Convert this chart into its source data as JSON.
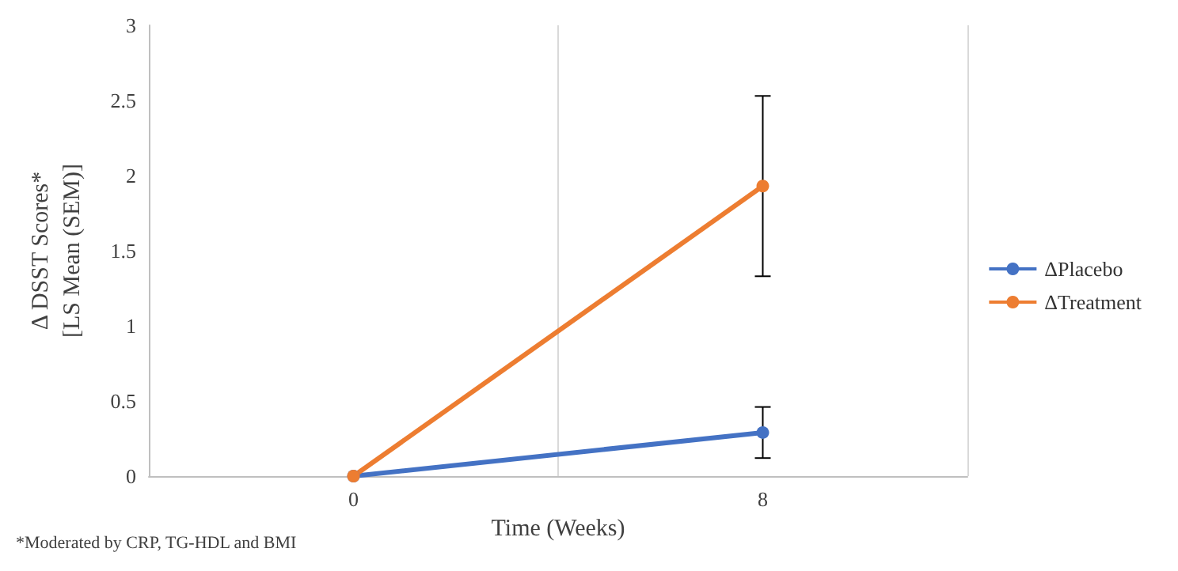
{
  "chart_data": {
    "type": "line",
    "xlabel": "Time (Weeks)",
    "ylabel": "Δ DSST Scores*\n[LS Mean (SEM)]",
    "categories": [
      "0",
      "8"
    ],
    "series": [
      {
        "name": "ΔPlacebo",
        "color": "#4472c4",
        "values": [
          0,
          0.29
        ],
        "errors": [
          null,
          0.17
        ]
      },
      {
        "name": "ΔTreatment",
        "color": "#ed7d31",
        "values": [
          0,
          1.93
        ],
        "errors": [
          null,
          0.6
        ]
      }
    ],
    "ylim": [
      0,
      3
    ],
    "yticks": [
      0,
      0.5,
      1,
      1.5,
      2,
      2.5,
      3
    ],
    "grid": "x",
    "legend": "right",
    "marker": "circle",
    "line_style": "solid",
    "annotations": [
      "*Moderated by CRP, TG-HDL and BMI"
    ]
  }
}
